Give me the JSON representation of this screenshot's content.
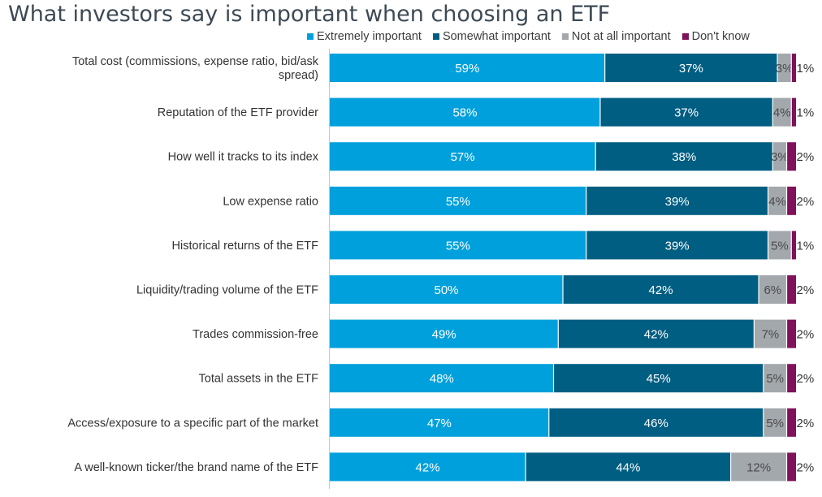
{
  "chart_data": {
    "type": "bar",
    "orientation": "horizontal",
    "stacked": true,
    "title": "What investors say is important when choosing an ETF",
    "categories": [
      "Total cost (commissions, expense ratio, bid/ask spread)",
      "Reputation of the ETF provider",
      "How well it tracks to its index",
      "Low expense ratio",
      "Historical returns of the ETF",
      "Liquidity/trading volume of the ETF",
      "Trades commission-free",
      "Total assets in the ETF",
      "Access/exposure to a specific part of the market",
      "A well-known ticker/the brand name of the ETF"
    ],
    "series": [
      {
        "name": "Extremely important",
        "color": "#00a0dc",
        "values": [
          59,
          58,
          57,
          55,
          55,
          50,
          49,
          48,
          47,
          42
        ]
      },
      {
        "name": "Somewhat important",
        "color": "#005e82",
        "values": [
          37,
          37,
          38,
          39,
          39,
          42,
          42,
          45,
          46,
          44
        ]
      },
      {
        "name": "Not at all important",
        "color": "#a3a8ad",
        "values": [
          3,
          4,
          3,
          4,
          5,
          6,
          7,
          5,
          5,
          12
        ]
      },
      {
        "name": "Don't know",
        "color": "#80115b",
        "values": [
          1,
          1,
          2,
          2,
          1,
          2,
          2,
          2,
          2,
          2
        ]
      }
    ],
    "value_labels": [
      [
        "59%",
        "37%",
        "3%",
        "1%"
      ],
      [
        "58%",
        "37%",
        "4%",
        "1%"
      ],
      [
        "57%",
        "38%",
        "3%",
        "2%"
      ],
      [
        "55%",
        "39%",
        "4%",
        "2%"
      ],
      [
        "55%",
        "39%",
        "5%",
        "1%"
      ],
      [
        "50%",
        "42%",
        "6%",
        "2%"
      ],
      [
        "49%",
        "42%",
        "7%",
        "2%"
      ],
      [
        "48%",
        "45%",
        "5%",
        "2%"
      ],
      [
        "47%",
        "46%",
        "5%",
        "2%"
      ],
      [
        "42%",
        "44%",
        "12%",
        "2%"
      ]
    ],
    "xlim": [
      0,
      100
    ],
    "legend_position": "top",
    "grid": false
  }
}
